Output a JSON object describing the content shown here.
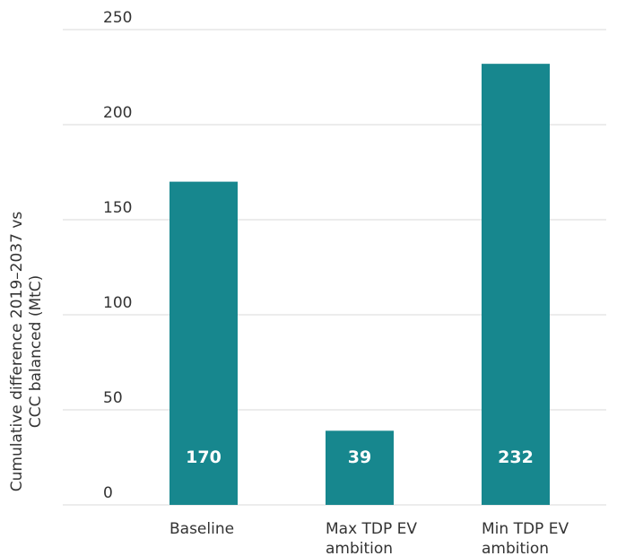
{
  "chart_data": {
    "type": "bar",
    "categories": [
      "Baseline",
      "Max TDP EV ambition",
      "Min TDP EV ambition"
    ],
    "category_lines": [
      [
        "Baseline"
      ],
      [
        "Max TDP EV",
        "ambition"
      ],
      [
        "Min TDP EV",
        "ambition"
      ]
    ],
    "values": [
      170,
      39,
      232
    ],
    "value_labels": [
      "170",
      "39",
      "232"
    ],
    "ylabel_lines": [
      "Cumulative difference 2019–2037 vs",
      "CCC balanced (MtC)"
    ],
    "ylim": [
      0,
      250
    ],
    "yticks": [
      0,
      50,
      100,
      150,
      200,
      250
    ],
    "grid": true,
    "bar_color": "#17878e",
    "grid_color": "#d9d9d9",
    "text_color": "#333333"
  }
}
